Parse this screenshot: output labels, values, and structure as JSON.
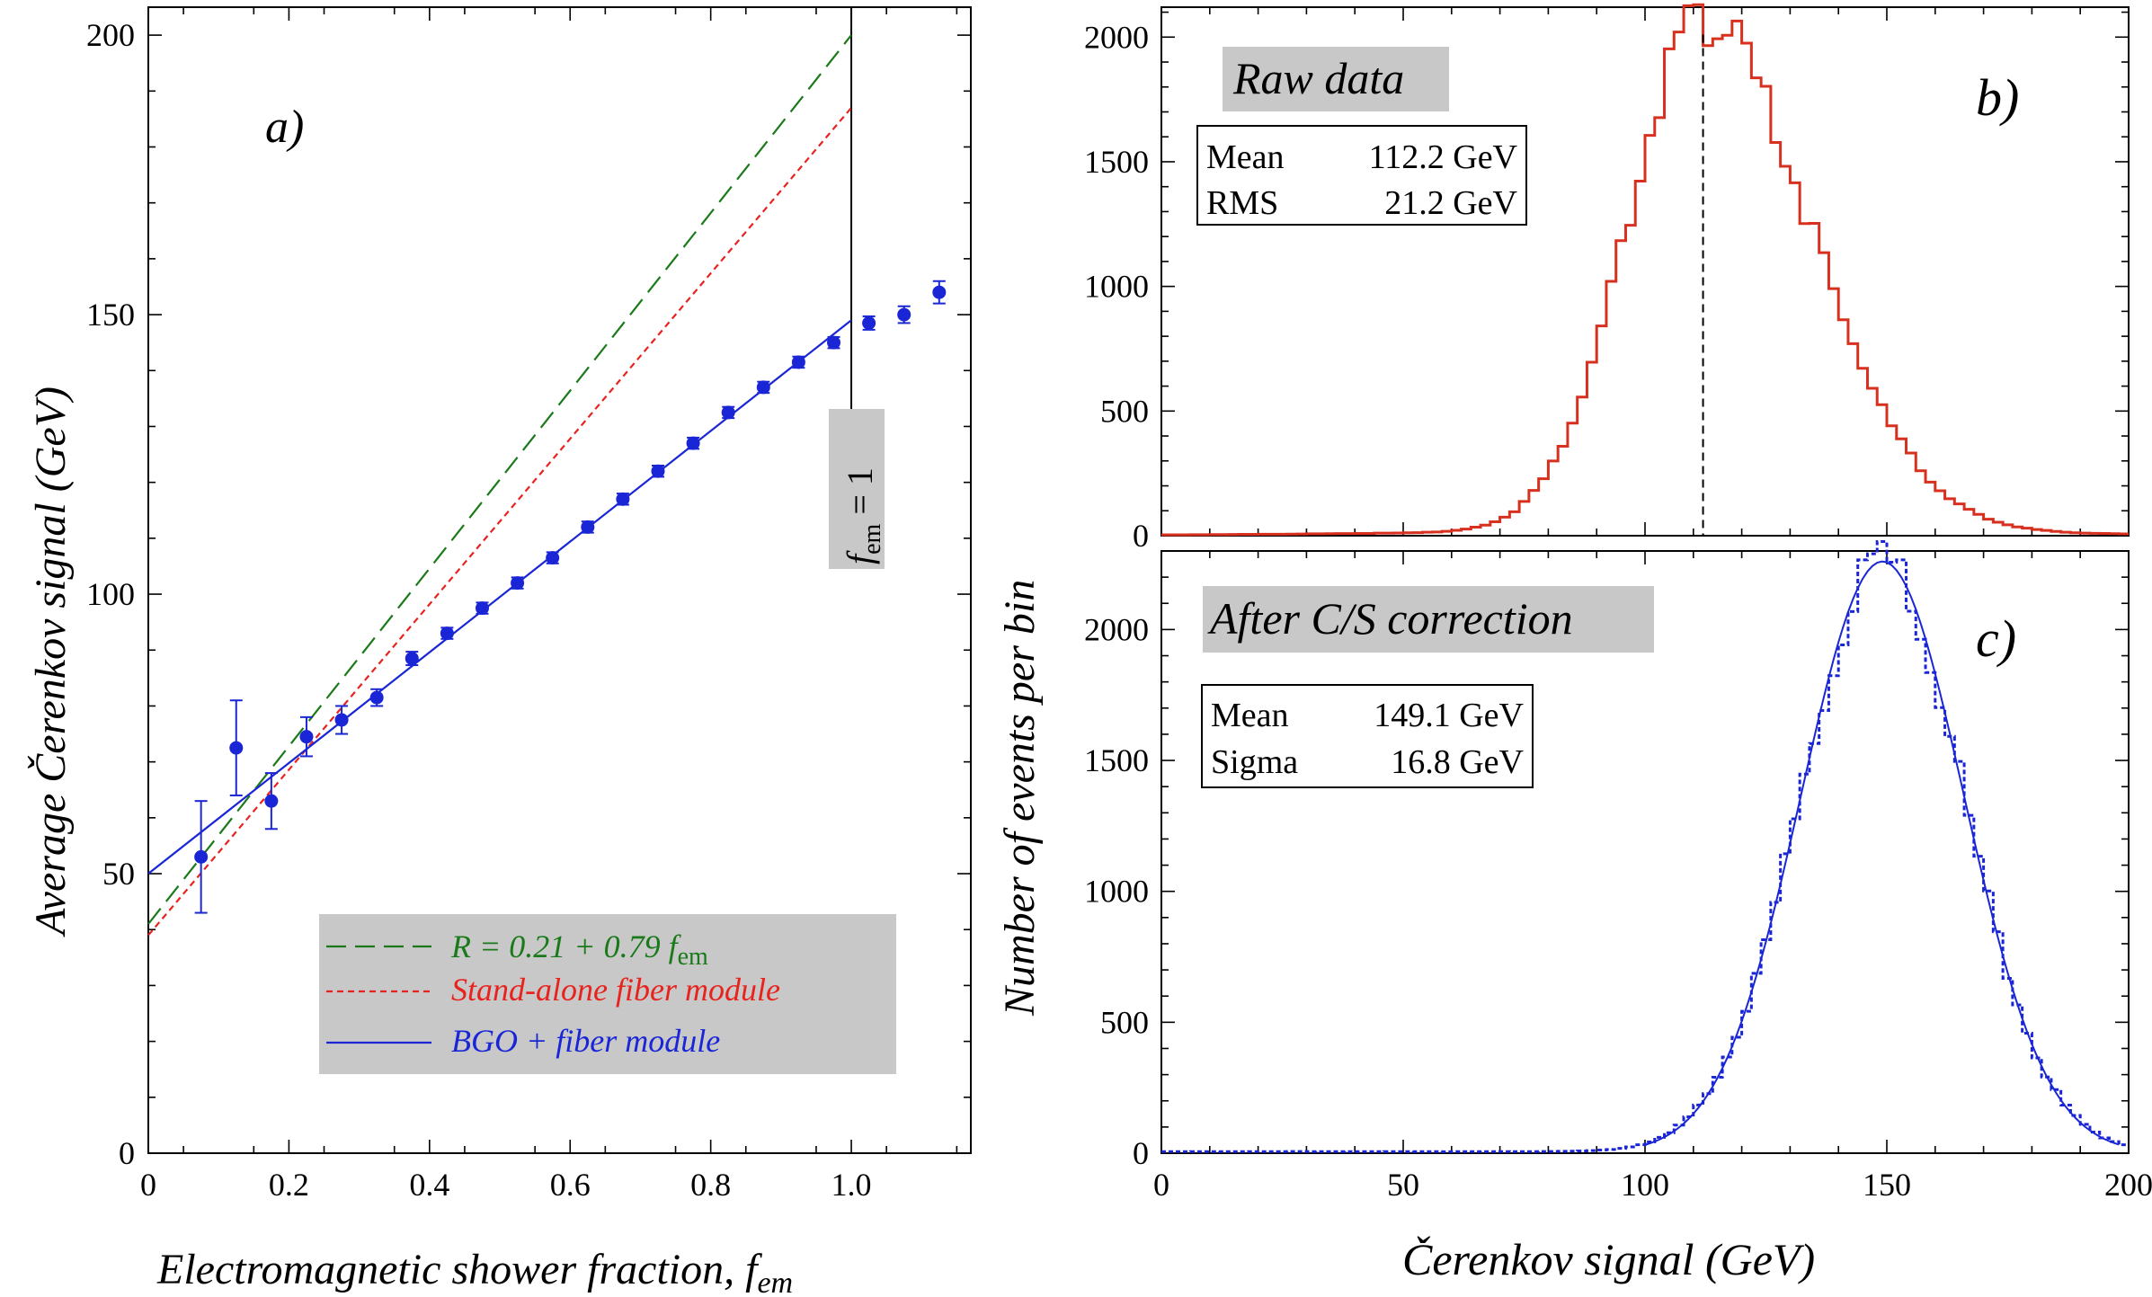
{
  "chart_data": [
    {
      "type": "scatter",
      "panel_label": "a)",
      "xlabel": "Electromagnetic shower fraction, ",
      "xlabel_sub": "f",
      "xlabel_subsub": "em",
      "ylabel": "Average Čerenkov signal (GeV)",
      "xlim": [
        0,
        1.17
      ],
      "ylim": [
        0,
        205
      ],
      "xticks": [
        "0",
        "0.2",
        "0.4",
        "0.6",
        "0.8",
        "1.0"
      ],
      "xtick_values": [
        0,
        0.2,
        0.4,
        0.6,
        0.8,
        1.0
      ],
      "yticks": [
        "0",
        "50",
        "100",
        "150",
        "200"
      ],
      "ytick_values": [
        0,
        50,
        100,
        150,
        200
      ],
      "series": [
        {
          "name": "BGO + fiber module",
          "kind": "points",
          "x": [
            0.075,
            0.125,
            0.175,
            0.225,
            0.275,
            0.325,
            0.375,
            0.425,
            0.475,
            0.525,
            0.575,
            0.625,
            0.675,
            0.725,
            0.775,
            0.825,
            0.875,
            0.925,
            0.975,
            1.025,
            1.075,
            1.125
          ],
          "y": [
            53,
            72.5,
            63,
            74.5,
            77.5,
            81.5,
            88.5,
            93,
            97.5,
            102,
            106.5,
            112,
            117,
            122,
            127,
            132.5,
            137,
            141.5,
            145,
            148.5,
            150,
            154
          ],
          "err": [
            10,
            8.5,
            5,
            3.5,
            2.5,
            1.5,
            1.2,
            1,
            1,
            1,
            1,
            1,
            1,
            1,
            1,
            1,
            1,
            1,
            1,
            1.2,
            1.5,
            2
          ]
        }
      ],
      "lines": [
        {
          "name": "R = 0.21 + 0.79 ",
          "name_sub": "f",
          "name_subsub": "em",
          "x": [
            0,
            1
          ],
          "y": [
            41,
            200
          ],
          "color": "#1a7a1a",
          "dash": "22,10"
        },
        {
          "name": "Stand-alone fiber module",
          "x": [
            0,
            1
          ],
          "y": [
            39,
            187
          ],
          "color": "#e8231e",
          "dash": "7,5"
        },
        {
          "name": "BGO + fiber module",
          "x": [
            0,
            1
          ],
          "y": [
            50,
            149
          ],
          "color": "#1a26d6",
          "dash": ""
        }
      ],
      "vline": {
        "x": 1.0,
        "label": "f",
        "label_sub": "em",
        "label_rest": " = 1"
      }
    },
    {
      "type": "histogram",
      "panel_label": "b)",
      "box_title": "Raw data",
      "stats": [
        {
          "label": "Mean",
          "value": "112.2 GeV"
        },
        {
          "label": "RMS",
          "value": "21.2 GeV"
        }
      ],
      "xlim": [
        0,
        200
      ],
      "ylim": [
        0,
        2120
      ],
      "yticks": [
        "0",
        "500",
        "1000",
        "1500",
        "2000"
      ],
      "ytick_values": [
        0,
        500,
        1000,
        1500,
        2000
      ],
      "bin_width": 2,
      "mean_marker": 112,
      "color": "#d7301f"
    },
    {
      "type": "histogram",
      "panel_label": "c)",
      "box_title": "After C/S correction",
      "stats": [
        {
          "label": "Mean",
          "value": "149.1 GeV"
        },
        {
          "label": "Sigma",
          "value": "16.8 GeV"
        }
      ],
      "xlabel": "Čerenkov signal (GeV)",
      "ylabel": "Number of events per bin",
      "xlim": [
        0,
        200
      ],
      "ylim": [
        0,
        2300
      ],
      "xticks": [
        "0",
        "50",
        "100",
        "150",
        "200"
      ],
      "xtick_values": [
        0,
        50,
        100,
        150,
        200
      ],
      "yticks": [
        "0",
        "500",
        "1000",
        "1500",
        "2000"
      ],
      "ytick_values": [
        0,
        500,
        1000,
        1500,
        2000
      ],
      "bin_width": 2,
      "fit": {
        "mean": 149.1,
        "sigma": 16.8,
        "amplitude": 2260
      },
      "color": "#1a26d6"
    }
  ]
}
